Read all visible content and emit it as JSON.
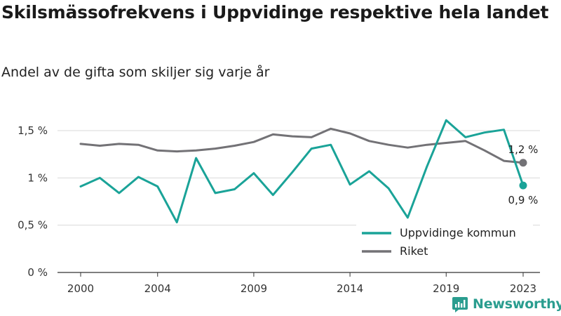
{
  "title": "Skilsmässofrekvens i Uppvidinge respektive hela landet",
  "subtitle": "Andel av de gifta som skiljer sig varje år",
  "brand": {
    "name": "Newsworthy",
    "icon": "newsworthy-logo-icon"
  },
  "colors": {
    "uppvidinge": "#1aa398",
    "riket": "#737276",
    "grid": "#d9d9d9",
    "axis": "#333333",
    "brand": "#2a9d8f"
  },
  "chart_data": {
    "type": "line",
    "title": "Skilsmässofrekvens i Uppvidinge respektive hela landet",
    "subtitle": "Andel av de gifta som skiljer sig varje år",
    "x": [
      2000,
      2001,
      2002,
      2003,
      2004,
      2005,
      2006,
      2007,
      2008,
      2009,
      2010,
      2011,
      2012,
      2013,
      2014,
      2015,
      2016,
      2017,
      2018,
      2019,
      2020,
      2021,
      2022,
      2023
    ],
    "x_ticks": [
      2000,
      2004,
      2009,
      2014,
      2019,
      2023
    ],
    "x_tick_labels": [
      "2000",
      "2004",
      "2009",
      "2014",
      "2019",
      "2023"
    ],
    "ylim": [
      0,
      1.5
    ],
    "y_ticks": [
      0,
      0.5,
      1,
      1.5
    ],
    "y_tick_labels": [
      "0 %",
      "0,5 %",
      "1 %",
      "1,5 %"
    ],
    "grid": "horizontal",
    "legend_position": "bottom-right",
    "series": [
      {
        "name": "Uppvidinge kommun",
        "color": "#1aa398",
        "values": [
          0.91,
          1.0,
          0.84,
          1.01,
          0.91,
          0.53,
          1.21,
          0.84,
          0.88,
          1.05,
          0.82,
          1.06,
          1.31,
          1.35,
          0.93,
          1.07,
          0.89,
          0.58,
          1.12,
          1.61,
          1.43,
          1.48,
          1.51,
          0.92
        ],
        "end_label": "0,9 %"
      },
      {
        "name": "Riket",
        "color": "#737276",
        "values": [
          1.36,
          1.34,
          1.36,
          1.35,
          1.29,
          1.28,
          1.29,
          1.31,
          1.34,
          1.38,
          1.46,
          1.44,
          1.43,
          1.52,
          1.47,
          1.39,
          1.35,
          1.32,
          1.35,
          1.37,
          1.39,
          1.29,
          1.18,
          1.16
        ],
        "end_label": "1,2 %"
      }
    ]
  }
}
